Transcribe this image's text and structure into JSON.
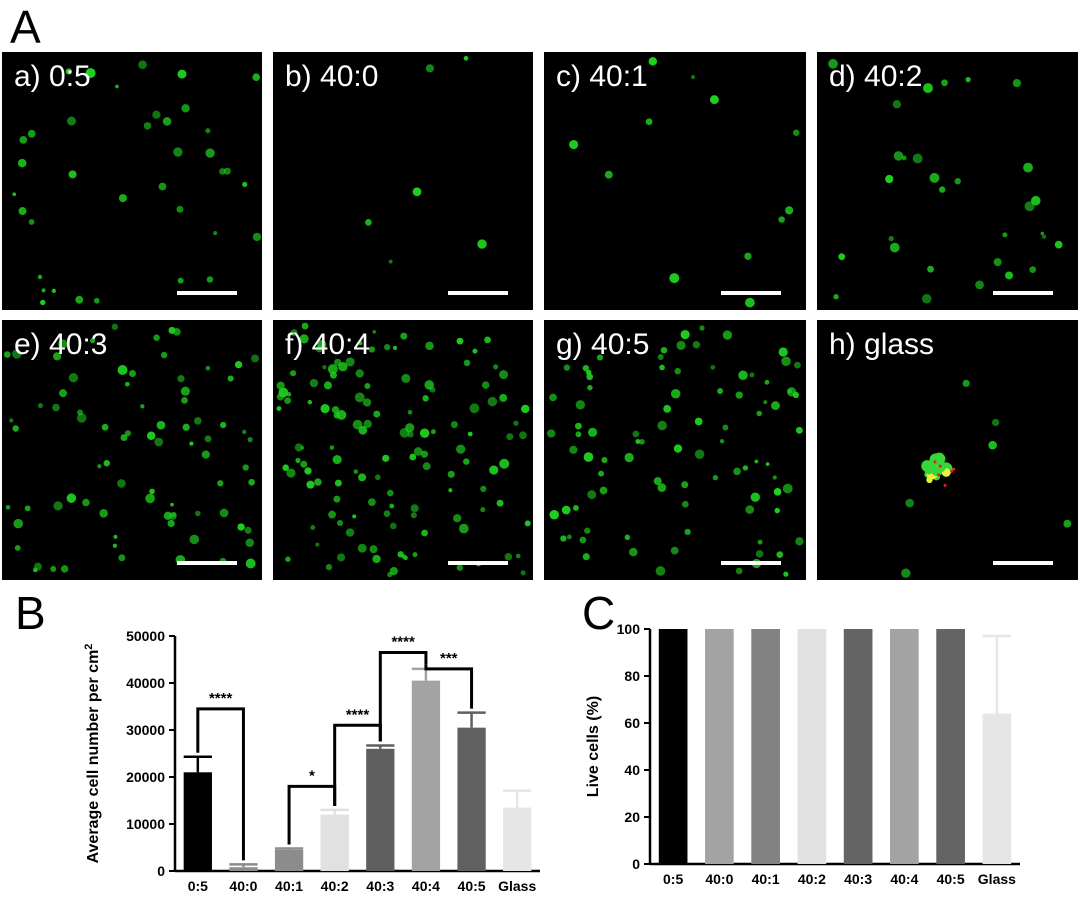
{
  "figure": {
    "label_a": "A",
    "label_b": "B",
    "label_c": "C"
  },
  "panels": [
    {
      "label": "a) 0:5",
      "cell_color": "#1fd01f",
      "density": 38
    },
    {
      "label": "b) 40:0",
      "cell_color": "#1fd01f",
      "density": 6
    },
    {
      "label": "c) 40:1",
      "cell_color": "#1fd01f",
      "density": 12
    },
    {
      "label": "d) 40:2",
      "cell_color": "#1fd01f",
      "density": 30
    },
    {
      "label": "e) 40:3",
      "cell_color": "#1fd01f",
      "density": 80
    },
    {
      "label": "f) 40:4",
      "cell_color": "#1fd01f",
      "density": 130
    },
    {
      "label": "g) 40:5",
      "cell_color": "#1fd01f",
      "density": 90
    },
    {
      "label": "h) glass",
      "cell_color": "#1fd01f",
      "density": 6
    }
  ],
  "chart_data": [
    {
      "type": "bar",
      "title": "",
      "xlabel": "",
      "ylabel": "Average cell number per cm",
      "ylabel_superscript": "2",
      "categories": [
        "0:5",
        "40:0",
        "40:1",
        "40:2",
        "40:3",
        "40:4",
        "40:5",
        "Glass"
      ],
      "values": [
        21000,
        800,
        4500,
        12000,
        26000,
        40500,
        30500,
        13500
      ],
      "errors": [
        3300,
        600,
        300,
        1000,
        700,
        2500,
        3200,
        3600
      ],
      "colors": [
        "#000000",
        "#8c8c8c",
        "#8c8c8c",
        "#e1e1e1",
        "#5f5f5f",
        "#a3a3a3",
        "#606060",
        "#e6e6e6"
      ],
      "yticks": [
        0,
        10000,
        20000,
        30000,
        40000,
        50000
      ],
      "ylim": [
        0,
        50000
      ],
      "grid": false,
      "significance": [
        {
          "from": 0,
          "to": 1,
          "label": "****",
          "y": 34500
        },
        {
          "from": 2,
          "to": 3,
          "label": "*",
          "y": 18000
        },
        {
          "from": 3,
          "to": 4,
          "label": "****",
          "y": 31000
        },
        {
          "from": 4,
          "to": 5,
          "label": "****",
          "y": 46500
        },
        {
          "from": 5,
          "to": 6,
          "label": "***",
          "y": 43000
        }
      ]
    },
    {
      "type": "bar",
      "title": "",
      "xlabel": "",
      "ylabel": "Live cells (%)",
      "categories": [
        "0:5",
        "40:0",
        "40:1",
        "40:2",
        "40:3",
        "40:4",
        "40:5",
        "Glass"
      ],
      "values": [
        100,
        100,
        100,
        100,
        100,
        100,
        100,
        64
      ],
      "errors": [
        0,
        0,
        0,
        0,
        0,
        0,
        0,
        33
      ],
      "colors": [
        "#000000",
        "#a3a3a3",
        "#828282",
        "#e1e1e1",
        "#646464",
        "#a3a3a3",
        "#646464",
        "#e6e6e6"
      ],
      "yticks": [
        0,
        20,
        40,
        60,
        80,
        100
      ],
      "ylim": [
        0,
        100
      ],
      "grid": false
    }
  ]
}
